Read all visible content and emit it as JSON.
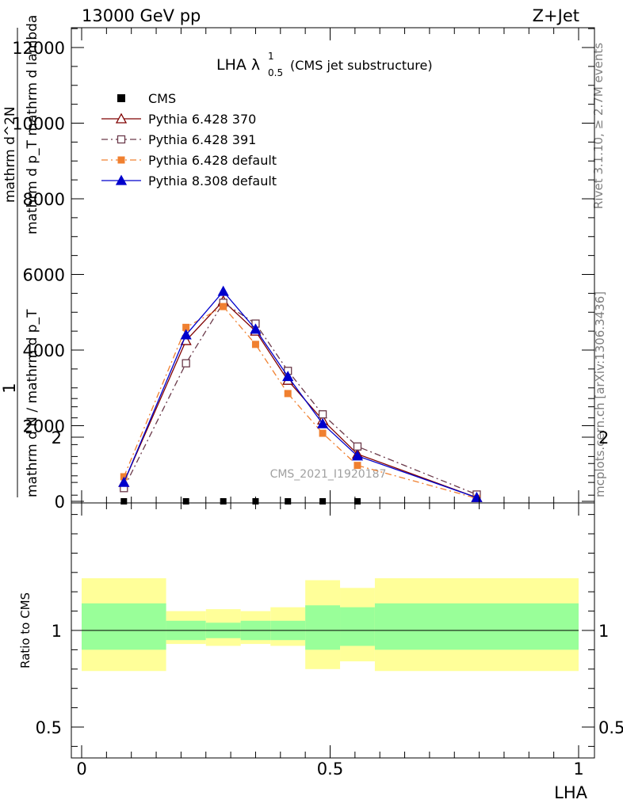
{
  "header": {
    "left": "13000 GeV pp",
    "right": "Z+Jet"
  },
  "side_labels": {
    "rivet": "Rivet 3.1.10, ≥ 2.7M events",
    "mcplots": "mcplots.cern.ch [arXiv:1306.3436]"
  },
  "chart_data": {
    "type": "line",
    "title": "LHA λ",
    "title_sup": "1",
    "title_sub": "0.5",
    "title_suffix": "(CMS jet substructure)",
    "watermark": "CMS_2021_I1920187",
    "xlabel": "LHA",
    "ylabel_top": "1",
    "ylabel_bottom": "mathrm d N / mathrm d p_T",
    "ylabel_numerator": "mathrm d^2N",
    "ylabel_denominator": "mathrm d p_T mathrm d lambda",
    "ratio_ylabel": "Ratio to CMS",
    "xlim": [
      0,
      1
    ],
    "ylim": [
      0,
      12600
    ],
    "ratio_ylim": [
      0.35,
      2.3
    ],
    "x_ticks": [
      0,
      0.5,
      1
    ],
    "x_tick_labels": [
      "0",
      "0.5",
      "1"
    ],
    "y_ticks": [
      0,
      2000,
      4000,
      6000,
      8000,
      10000,
      12000
    ],
    "y_tick_labels": [
      "0",
      "2000",
      "4000",
      "6000",
      "8000",
      "10000",
      "12000"
    ],
    "ratio_ticks": [
      0.5,
      1,
      2
    ],
    "ratio_tick_labels": [
      "0.5",
      "1",
      "2"
    ],
    "bin_edges": [
      0,
      0.17,
      0.25,
      0.32,
      0.38,
      0.45,
      0.52,
      0.59,
      1.0
    ],
    "data": {
      "name": "CMS",
      "x": [
        0.085,
        0.21,
        0.285,
        0.35,
        0.415,
        0.485,
        0.555
      ],
      "y": [
        0,
        0,
        0,
        0,
        0,
        0,
        0
      ]
    },
    "series": [
      {
        "name": "Pythia 6.428 370",
        "color": "#7f0000",
        "dash": "",
        "marker": "triangle-open",
        "x": [
          0.085,
          0.21,
          0.285,
          0.35,
          0.415,
          0.485,
          0.555,
          0.795
        ],
        "y": [
          500,
          4250,
          5300,
          4500,
          3200,
          2150,
          1250,
          100
        ]
      },
      {
        "name": "Pythia 6.428 391",
        "color": "#6b3a4a",
        "dash": "8,4,2,4",
        "marker": "square-open",
        "x": [
          0.085,
          0.21,
          0.285,
          0.35,
          0.415,
          0.485,
          0.555,
          0.795
        ],
        "y": [
          350,
          3650,
          5250,
          4700,
          3450,
          2300,
          1450,
          180
        ]
      },
      {
        "name": "Pythia 6.428 default",
        "color": "#f08030",
        "dash": "8,4,2,4",
        "marker": "square-filled",
        "x": [
          0.085,
          0.21,
          0.285,
          0.35,
          0.415,
          0.485,
          0.555,
          0.795
        ],
        "y": [
          650,
          4600,
          5150,
          4150,
          2850,
          1800,
          950,
          80
        ]
      },
      {
        "name": "Pythia 8.308 default",
        "color": "#0000cc",
        "dash": "",
        "marker": "triangle-filled",
        "x": [
          0.085,
          0.21,
          0.285,
          0.35,
          0.415,
          0.485,
          0.555,
          0.795
        ],
        "y": [
          500,
          4400,
          5550,
          4550,
          3300,
          2050,
          1200,
          100
        ]
      }
    ],
    "ratio_bands": {
      "inner_color": "#99ff99",
      "outer_color": "#ffff99",
      "inner": [
        [
          0.9,
          1.14
        ],
        [
          0.95,
          1.05
        ],
        [
          0.96,
          1.04
        ],
        [
          0.95,
          1.05
        ],
        [
          0.95,
          1.05
        ],
        [
          0.9,
          1.13
        ],
        [
          0.92,
          1.12
        ],
        [
          0.9,
          1.14
        ]
      ],
      "outer": [
        [
          0.79,
          1.27
        ],
        [
          0.93,
          1.1
        ],
        [
          0.92,
          1.11
        ],
        [
          0.93,
          1.1
        ],
        [
          0.92,
          1.12
        ],
        [
          0.8,
          1.26
        ],
        [
          0.84,
          1.22
        ],
        [
          0.79,
          1.27
        ]
      ]
    }
  }
}
